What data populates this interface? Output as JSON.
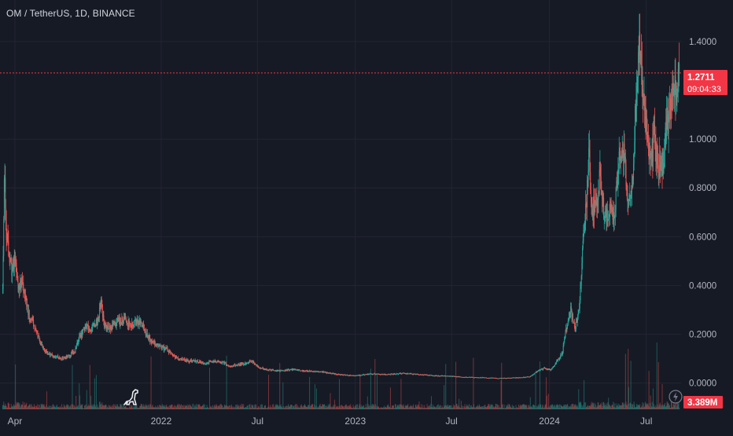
{
  "header": {
    "symbol_title": "OM / TetherUS, 1D, BINANCE"
  },
  "price_tag": {
    "price": "1.2711",
    "countdown": "09:04:33",
    "color": "#f23645"
  },
  "volume_tag": {
    "value": "3.389M",
    "color": "#f23645"
  },
  "icons": {
    "logo": "tradingview-dino-icon",
    "alerts": "flash-icon"
  },
  "colors": {
    "up": "#26a69a",
    "down": "#ef5350",
    "background": "#161a25",
    "grid": "#232632",
    "text": "#b2b5be"
  },
  "chart_data": {
    "type": "candlestick",
    "title": "OM / TetherUS, 1D, BINANCE",
    "y_axis": {
      "ticks": [
        "1.4000",
        "1.0000",
        "0.8000",
        "0.6000",
        "0.4000",
        "0.2000",
        "0.0000"
      ],
      "tick_values": [
        1.4,
        1.0,
        0.8,
        0.6,
        0.4,
        0.2,
        0.0
      ],
      "ylim": [
        -0.03,
        1.48
      ]
    },
    "x_axis": {
      "ticks": [
        "Apr",
        "2022",
        "Jul",
        "2023",
        "Jul",
        "2024",
        "Jul"
      ],
      "tick_dates": [
        "2021-04-01",
        "2022-01-01",
        "2022-07-01",
        "2023-01-01",
        "2023-07-01",
        "2024-01-01",
        "2024-07-01"
      ],
      "range": [
        "2021-03-04",
        "2024-09-03"
      ]
    },
    "last_price": 1.2711,
    "grid": true,
    "series": [
      {
        "name": "close",
        "points": [
          [
            "2021-03-09",
            0.38
          ],
          [
            "2021-03-12",
            0.86
          ],
          [
            "2021-03-16",
            0.62
          ],
          [
            "2021-03-20",
            0.55
          ],
          [
            "2021-03-26",
            0.45
          ],
          [
            "2021-04-02",
            0.5
          ],
          [
            "2021-04-08",
            0.38
          ],
          [
            "2021-04-15",
            0.42
          ],
          [
            "2021-04-22",
            0.33
          ],
          [
            "2021-04-30",
            0.26
          ],
          [
            "2021-05-08",
            0.24
          ],
          [
            "2021-05-16",
            0.18
          ],
          [
            "2021-05-24",
            0.14
          ],
          [
            "2021-06-03",
            0.12
          ],
          [
            "2021-06-15",
            0.11
          ],
          [
            "2021-06-28",
            0.1
          ],
          [
            "2021-07-10",
            0.11
          ],
          [
            "2021-07-22",
            0.13
          ],
          [
            "2021-08-01",
            0.19
          ],
          [
            "2021-08-12",
            0.23
          ],
          [
            "2021-08-24",
            0.22
          ],
          [
            "2021-09-04",
            0.26
          ],
          [
            "2021-09-10",
            0.33
          ],
          [
            "2021-09-16",
            0.24
          ],
          [
            "2021-09-28",
            0.23
          ],
          [
            "2021-10-10",
            0.25
          ],
          [
            "2021-10-22",
            0.26
          ],
          [
            "2021-11-03",
            0.24
          ],
          [
            "2021-11-15",
            0.25
          ],
          [
            "2021-11-27",
            0.24
          ],
          [
            "2021-12-06",
            0.19
          ],
          [
            "2021-12-16",
            0.17
          ],
          [
            "2021-12-28",
            0.15
          ],
          [
            "2022-01-10",
            0.14
          ],
          [
            "2022-01-24",
            0.11
          ],
          [
            "2022-02-08",
            0.1
          ],
          [
            "2022-02-22",
            0.09
          ],
          [
            "2022-03-08",
            0.09
          ],
          [
            "2022-03-25",
            0.08
          ],
          [
            "2022-04-10",
            0.09
          ],
          [
            "2022-04-28",
            0.085
          ],
          [
            "2022-05-12",
            0.07
          ],
          [
            "2022-05-25",
            0.075
          ],
          [
            "2022-06-08",
            0.08
          ],
          [
            "2022-06-20",
            0.09
          ],
          [
            "2022-07-04",
            0.065
          ],
          [
            "2022-07-20",
            0.055
          ],
          [
            "2022-08-10",
            0.05
          ],
          [
            "2022-09-05",
            0.055
          ],
          [
            "2022-10-01",
            0.05
          ],
          [
            "2022-11-01",
            0.045
          ],
          [
            "2022-12-01",
            0.035
          ],
          [
            "2023-01-01",
            0.03
          ],
          [
            "2023-02-01",
            0.038
          ],
          [
            "2023-03-01",
            0.035
          ],
          [
            "2023-04-01",
            0.04
          ],
          [
            "2023-05-01",
            0.035
          ],
          [
            "2023-06-01",
            0.03
          ],
          [
            "2023-07-01",
            0.028
          ],
          [
            "2023-08-01",
            0.024
          ],
          [
            "2023-09-01",
            0.022
          ],
          [
            "2023-10-01",
            0.02
          ],
          [
            "2023-11-01",
            0.022
          ],
          [
            "2023-11-25",
            0.026
          ],
          [
            "2023-12-10",
            0.05
          ],
          [
            "2023-12-22",
            0.06
          ],
          [
            "2024-01-05",
            0.055
          ],
          [
            "2024-01-15",
            0.09
          ],
          [
            "2024-01-25",
            0.12
          ],
          [
            "2024-02-03",
            0.24
          ],
          [
            "2024-02-10",
            0.3
          ],
          [
            "2024-02-18",
            0.22
          ],
          [
            "2024-02-26",
            0.3
          ],
          [
            "2024-03-05",
            0.62
          ],
          [
            "2024-03-10",
            0.72
          ],
          [
            "2024-03-15",
            0.95
          ],
          [
            "2024-03-20",
            0.73
          ],
          [
            "2024-03-28",
            0.72
          ],
          [
            "2024-04-05",
            0.85
          ],
          [
            "2024-04-14",
            0.68
          ],
          [
            "2024-04-24",
            0.72
          ],
          [
            "2024-05-03",
            0.7
          ],
          [
            "2024-05-12",
            0.95
          ],
          [
            "2024-05-18",
            1.0
          ],
          [
            "2024-05-26",
            0.75
          ],
          [
            "2024-06-05",
            0.8
          ],
          [
            "2024-06-13",
            1.25
          ],
          [
            "2024-06-18",
            1.4
          ],
          [
            "2024-06-23",
            1.2
          ],
          [
            "2024-06-30",
            1.05
          ],
          [
            "2024-07-08",
            0.9
          ],
          [
            "2024-07-16",
            1.0
          ],
          [
            "2024-07-24",
            0.88
          ],
          [
            "2024-08-03",
            0.9
          ],
          [
            "2024-08-08",
            1.05
          ],
          [
            "2024-08-18",
            1.15
          ],
          [
            "2024-08-27",
            1.22
          ],
          [
            "2024-09-01",
            1.2711
          ]
        ]
      }
    ]
  }
}
